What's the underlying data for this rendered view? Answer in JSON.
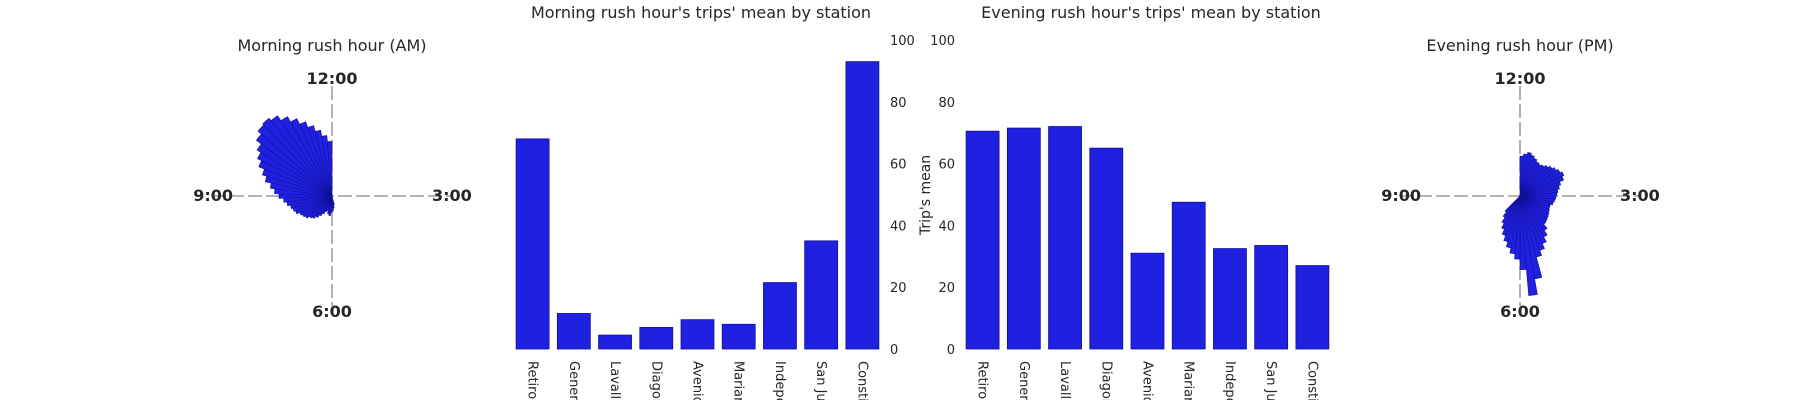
{
  "colors": {
    "bar": "#2020e0",
    "bar_edge": "#10109a",
    "axis_line": "#888888",
    "text": "#262626"
  },
  "chart_data": [
    {
      "type": "polar-bar",
      "title": "Morning rush hour (AM)",
      "clock_labels": {
        "top": "12:00",
        "right": "3:00",
        "bottom": "6:00",
        "left": "9:00"
      },
      "sector_span_hours": [
        5.5,
        12
      ],
      "num_bars": 40,
      "values": [
        6,
        8,
        10,
        11,
        13,
        12,
        10,
        11,
        13,
        15,
        17,
        19,
        20,
        22,
        23,
        24,
        26,
        27,
        28,
        30,
        32,
        35,
        38,
        41,
        45,
        48,
        52,
        55,
        58,
        62,
        65,
        66,
        64,
        60,
        56,
        52,
        48,
        44,
        40,
        36
      ]
    },
    {
      "type": "bar",
      "title": "Morning rush hour's trips' mean by station",
      "categories": [
        "Retiro",
        "Gener",
        "Lavalle",
        "Diagon",
        "Avenida",
        "Mariano",
        "Indepe",
        "San Ju",
        "Consti"
      ],
      "values": [
        68,
        11.5,
        4.5,
        7,
        9.5,
        8,
        21.5,
        35,
        93
      ],
      "ylabel": "Trip's mean",
      "ylim": [
        0,
        100
      ],
      "yticks": [
        0,
        20,
        40,
        60,
        80,
        100
      ],
      "ytick_side": "right"
    },
    {
      "type": "bar",
      "title": "Evening rush hour's trips' mean by station",
      "categories": [
        "Retiro",
        "Gener",
        "Lavalle",
        "Diagon",
        "Avenida",
        "Mariano",
        "Indepe",
        "San Ju",
        "Consti"
      ],
      "values": [
        70.5,
        71.5,
        72,
        65,
        31,
        47.5,
        32.5,
        33.5,
        27
      ],
      "ylim": [
        0,
        100
      ],
      "yticks": [
        0,
        20,
        40,
        60,
        80,
        100
      ],
      "ytick_side": "left"
    },
    {
      "type": "polar-bar",
      "title": "Evening rush hour (PM)",
      "clock_labels": {
        "top": "12:00",
        "right": "3:00",
        "bottom": "6:00",
        "left": "9:00"
      },
      "sector_span_hours": [
        0,
        7.5
      ],
      "num_bars": 45,
      "values": [
        38,
        40,
        42,
        40,
        38,
        36,
        35,
        36,
        38,
        40,
        42,
        44,
        46,
        44,
        40,
        38,
        36,
        35,
        34,
        33,
        32,
        30,
        30,
        31,
        32,
        33,
        34,
        35,
        40,
        45,
        50,
        55,
        60,
        80,
        95,
        70,
        60,
        55,
        50,
        45,
        40,
        35,
        30,
        25,
        20
      ]
    }
  ]
}
